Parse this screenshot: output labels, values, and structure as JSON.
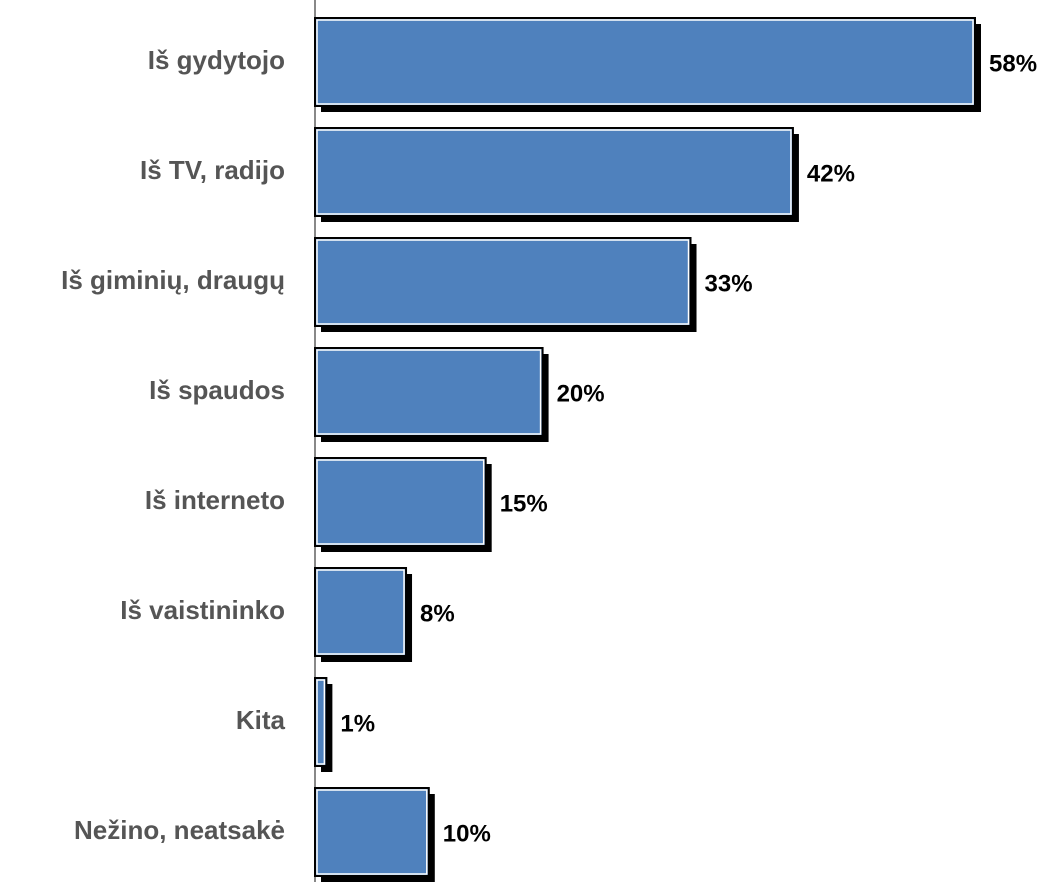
{
  "chart_data": {
    "type": "bar",
    "orientation": "horizontal",
    "categories": [
      "Iš gydytojo",
      "Iš TV, radijo",
      "Iš giminių, draugų",
      "Iš spaudos",
      "Iš interneto",
      "Iš vaistininko",
      "Kita",
      "Nežino, neatsakė"
    ],
    "values": [
      58,
      42,
      33,
      20,
      15,
      8,
      1,
      10
    ],
    "value_labels": [
      "58%",
      "42%",
      "33%",
      "20%",
      "15%",
      "8%",
      "1%",
      "10%"
    ],
    "color": "#4f81bd"
  }
}
